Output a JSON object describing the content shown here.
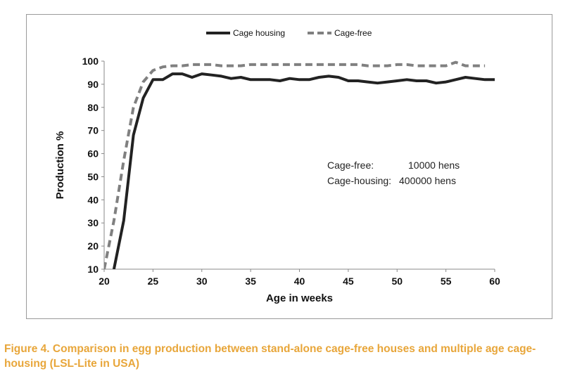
{
  "chart_data": {
    "type": "line",
    "title": "",
    "xlabel": "Age in weeks",
    "ylabel": "Production %",
    "xlim": [
      20,
      60
    ],
    "ylim": [
      10,
      100
    ],
    "xticks": [
      20,
      25,
      30,
      35,
      40,
      45,
      50,
      55,
      60
    ],
    "yticks": [
      10,
      20,
      30,
      40,
      50,
      60,
      70,
      80,
      90,
      100
    ],
    "grid": false,
    "legend_position": "top",
    "series": [
      {
        "name": "Cage housing",
        "style": "solid",
        "color": "#222222",
        "x": [
          21,
          22,
          23,
          24,
          25,
          26,
          27,
          28,
          29,
          30,
          31,
          32,
          33,
          34,
          35,
          36,
          37,
          38,
          39,
          40,
          41,
          42,
          43,
          44,
          45,
          46,
          47,
          48,
          49,
          50,
          51,
          52,
          53,
          54,
          55,
          56,
          57,
          58,
          59,
          60
        ],
        "y": [
          10,
          31,
          68,
          84,
          92,
          92,
          94.5,
          94.5,
          93,
          94.5,
          94,
          93.5,
          92.5,
          93,
          92,
          92,
          92,
          91.5,
          92.5,
          92,
          92,
          93,
          93.5,
          93,
          91.5,
          91.5,
          91,
          90.5,
          91,
          91.5,
          92,
          91.5,
          91.5,
          90.5,
          91,
          92,
          93,
          92.5,
          92,
          92
        ]
      },
      {
        "name": "Cage-free",
        "style": "dashed",
        "color": "#808080",
        "x": [
          20,
          21,
          22,
          23,
          24,
          25,
          26,
          27,
          28,
          29,
          30,
          31,
          32,
          33,
          34,
          35,
          36,
          37,
          38,
          39,
          40,
          41,
          42,
          43,
          44,
          45,
          46,
          47,
          48,
          49,
          50,
          51,
          52,
          53,
          54,
          55,
          56,
          57,
          58,
          59
        ],
        "y": [
          10,
          31,
          57,
          80,
          91,
          96,
          97.5,
          98,
          98,
          98.5,
          98.5,
          98.5,
          98,
          98,
          98,
          98.5,
          98.5,
          98.5,
          98.5,
          98.5,
          98.5,
          98.5,
          98.5,
          98.5,
          98.5,
          98.5,
          98.5,
          98,
          98,
          98,
          98.5,
          98.5,
          98,
          98,
          98,
          98,
          99.5,
          98,
          98,
          98
        ]
      }
    ],
    "annotations": [
      {
        "label": "Cage-free:",
        "value": "10000 hens",
        "color": "#808080"
      },
      {
        "label": "Cage-housing:",
        "value": "400000 hens",
        "color": "#222222"
      }
    ]
  },
  "caption": "Figure 4. Comparison in egg production between stand-alone cage-free houses and multiple age cage-housing (LSL-Lite in USA)"
}
